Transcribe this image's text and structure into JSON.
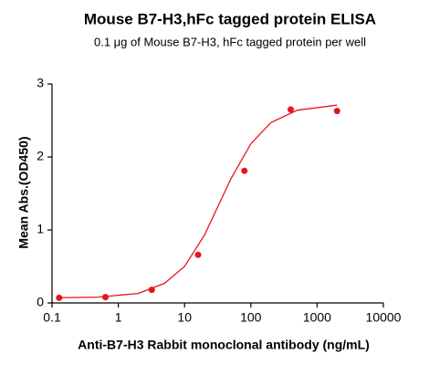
{
  "chart_data": {
    "type": "scatter",
    "title": "Mouse B7-H3,hFc tagged protein ELISA",
    "subtitle": "0.1 μg of Mouse B7-H3, hFc tagged protein per well",
    "x_label": "Anti-B7-H3 Rabbit monoclonal antibody (ng/mL)",
    "y_label": "Mean Abs.(OD450)",
    "x": [
      0.128,
      0.64,
      3.2,
      16,
      80,
      400,
      2000
    ],
    "values": [
      0.07,
      0.08,
      0.18,
      0.66,
      1.81,
      2.65,
      2.63
    ],
    "color": "#e8141c",
    "fit": {
      "x": [
        0.128,
        0.5,
        2,
        5,
        10,
        20,
        50,
        100,
        200,
        500,
        2000
      ],
      "values": [
        0.072,
        0.08,
        0.13,
        0.27,
        0.5,
        0.93,
        1.7,
        2.18,
        2.47,
        2.64,
        2.71
      ]
    },
    "x_log": true,
    "xlim": [
      0.1,
      10000
    ],
    "xticks": [
      0.1,
      1,
      10,
      100,
      1000,
      10000
    ],
    "ylim": [
      0,
      3
    ],
    "yticks": [
      0,
      1,
      2,
      3
    ]
  }
}
